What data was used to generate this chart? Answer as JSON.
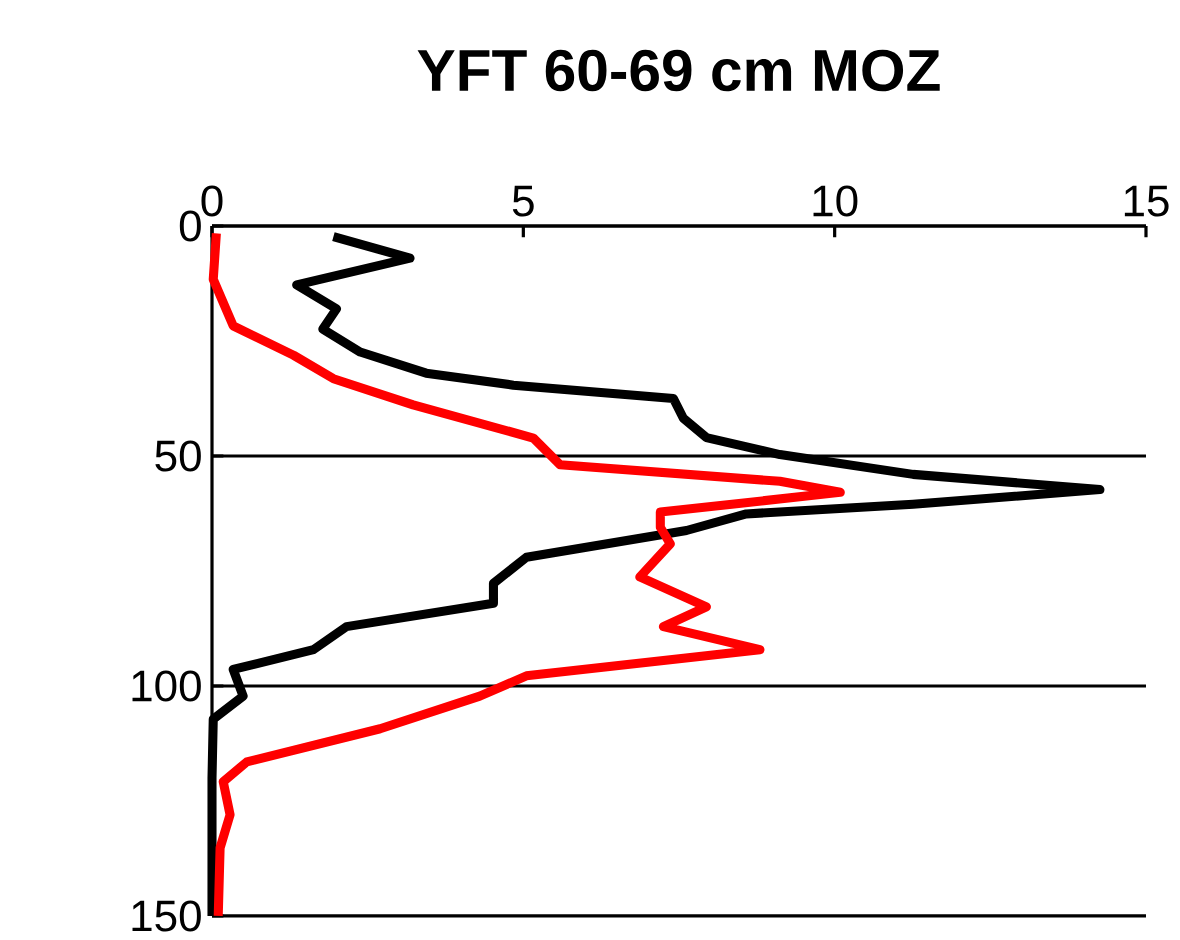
{
  "chart_data": {
    "type": "line",
    "title": "YFT 60-69 cm MOZ",
    "xlim": [
      0,
      15
    ],
    "xticks": [
      0,
      5,
      10,
      15
    ],
    "ylim": [
      150,
      0
    ],
    "yticks": [
      0,
      50,
      100,
      150
    ],
    "grid": "y",
    "marker": "none",
    "line_style": "solid",
    "series": [
      {
        "color": "#000000",
        "x": [
          1.95,
          3.18,
          1.36,
          2.0,
          1.78,
          2.38,
          3.44,
          4.84,
          7.41,
          7.57,
          7.94,
          9.12,
          11.26,
          14.26,
          11.26,
          8.58,
          7.62,
          5.05,
          4.52,
          4.52,
          2.16,
          1.63,
          0.34,
          0.5,
          0.02,
          0.0,
          0.0
        ],
        "values": [
          2.3,
          7,
          12.8,
          18,
          22.4,
          27.4,
          32,
          34.6,
          37.5,
          41.8,
          46,
          49.7,
          54,
          57.3,
          60.5,
          62.6,
          66.2,
          72,
          77.7,
          82,
          87.1,
          92.1,
          96.4,
          102.2,
          107.2,
          120,
          150
        ]
      },
      {
        "color": "#ff0000",
        "x": [
          0.07,
          0.02,
          0.34,
          1.31,
          1.95,
          3.23,
          5.16,
          5.59,
          9.12,
          10.09,
          7.2,
          7.2,
          7.36,
          6.87,
          7.94,
          7.25,
          8.8,
          5.05,
          4.3,
          2.7,
          0.56,
          0.18,
          0.29,
          0.13,
          0.1
        ],
        "values": [
          1.6,
          11.6,
          21.7,
          28.1,
          33.2,
          38.9,
          46.1,
          51.9,
          55.5,
          57.9,
          62.2,
          65.5,
          69.1,
          76.3,
          82.8,
          87.1,
          92.1,
          97.8,
          102.2,
          109.3,
          116.5,
          120.8,
          128,
          135.2,
          150
        ]
      }
    ]
  }
}
